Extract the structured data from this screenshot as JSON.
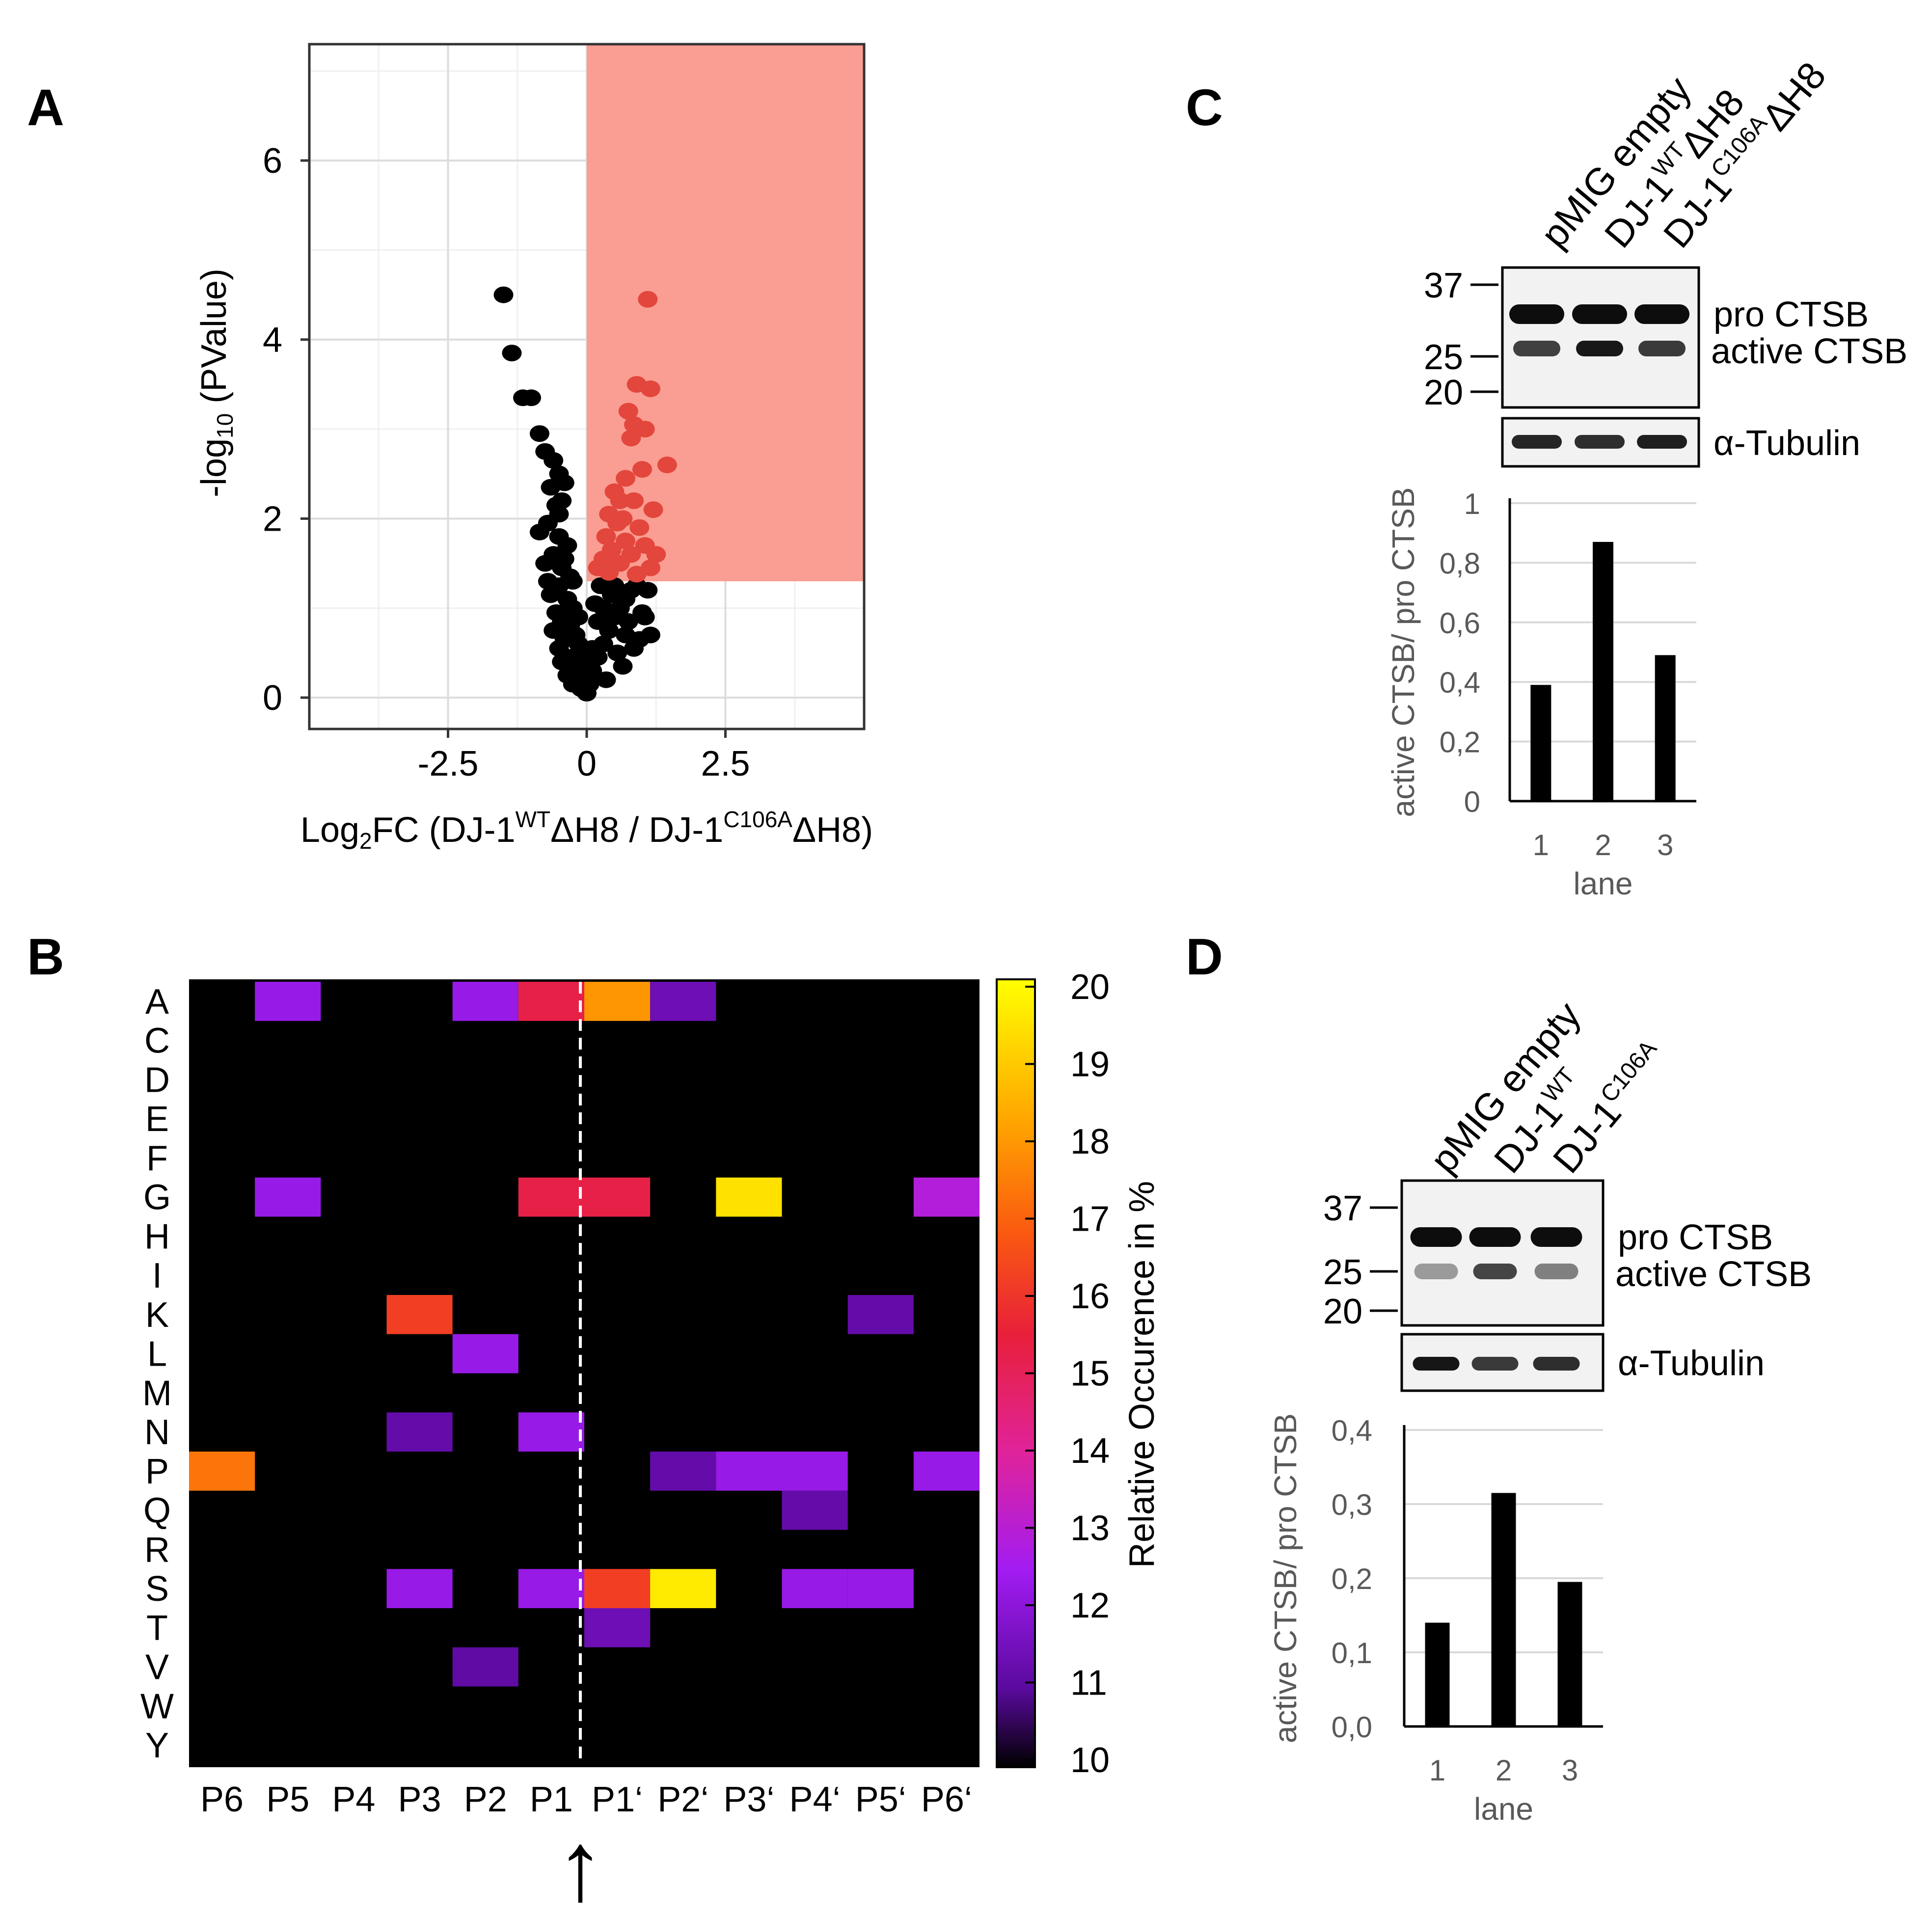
{
  "colors": {
    "significant_region": "#fa9d92",
    "significant_point": "#e3463c",
    "point": "#000000",
    "heatmap_background": "#000000",
    "bar": "#000000",
    "colormap": [
      "#000000",
      "#5a0a9e",
      "#a21cf2",
      "#e0239a",
      "#e8203a",
      "#fa5a10",
      "#ffa500",
      "#ffff00"
    ]
  },
  "panels": {
    "A": {
      "label": "A"
    },
    "B": {
      "label": "B",
      "arrow_glyph": "↑"
    },
    "C": {
      "label": "C",
      "lanes": [
        "pMIG empty",
        "DJ-1WTΔH8",
        "DJ-1C106AΔH8"
      ],
      "lane_parts": [
        {
          "main": "pMIG empty",
          "sup": "",
          "tail": ""
        },
        {
          "main": "DJ-1",
          "sup": "WT",
          "tail": "ΔH8"
        },
        {
          "main": "DJ-1",
          "sup": "C106A",
          "tail": "ΔH8"
        }
      ],
      "markers": [
        "37",
        "25",
        "20"
      ],
      "bands": {
        "pro": "pro CTSB",
        "active": "active CTSB",
        "loading": "α-Tubulin"
      }
    },
    "D": {
      "label": "D",
      "lanes": [
        "pMIG empty",
        "DJ-1WT",
        "DJ-1C106A"
      ],
      "lane_parts": [
        {
          "main": "pMIG empty",
          "sup": "",
          "tail": ""
        },
        {
          "main": "DJ-1",
          "sup": "WT",
          "tail": ""
        },
        {
          "main": "DJ-1",
          "sup": "C106A",
          "tail": ""
        }
      ],
      "markers": [
        "37",
        "25",
        "20"
      ],
      "bands": {
        "pro": "pro CTSB",
        "active": "active CTSB",
        "loading": "α-Tubulin"
      }
    }
  },
  "chart_data": [
    {
      "panel": "A",
      "type": "scatter",
      "title": "",
      "xlabel": "Log2FC (DJ-1WTΔH8 / DJ-1C106AΔH8)",
      "xlabel_parts": {
        "a": "Log",
        "b": "2",
        "c": "FC (DJ-1",
        "d": "WT",
        "e": "ΔH8 / DJ-1",
        "f": "C106A",
        "g": "ΔH8)"
      },
      "ylabel": "-log10 (PValue)",
      "ylabel_parts": {
        "a": "-log",
        "b": "10",
        "c": " (PValue)"
      },
      "xlim": [
        -5.0,
        5.0
      ],
      "ylim": [
        -0.35,
        7.3
      ],
      "xticks": [
        -2.5,
        0,
        2.5
      ],
      "xtick_labels": [
        "-2.5",
        "0",
        "2.5"
      ],
      "yticks": [
        0,
        2,
        4,
        6
      ],
      "ytick_labels": [
        "0",
        "2",
        "4",
        "6"
      ],
      "significance_region": {
        "x_min": 0,
        "y_min": 1.3
      },
      "series": [
        {
          "name": "not significant",
          "points": [
            [
              -1.5,
              4.5
            ],
            [
              -1.35,
              3.85
            ],
            [
              -1.15,
              3.35
            ],
            [
              -1.0,
              3.35
            ],
            [
              -0.85,
              2.95
            ],
            [
              -0.6,
              2.65
            ],
            [
              -0.5,
              2.5
            ],
            [
              -0.65,
              2.35
            ],
            [
              -0.45,
              2.2
            ],
            [
              -0.5,
              2.05
            ],
            [
              -0.4,
              2.4
            ],
            [
              -0.7,
              1.95
            ],
            [
              -0.85,
              1.85
            ],
            [
              -0.5,
              1.8
            ],
            [
              -0.35,
              1.7
            ],
            [
              -0.6,
              1.6
            ],
            [
              -0.75,
              1.5
            ],
            [
              -0.45,
              1.45
            ],
            [
              -0.3,
              1.35
            ],
            [
              -0.5,
              1.25
            ],
            [
              -0.65,
              1.15
            ],
            [
              -0.35,
              1.1
            ],
            [
              -0.25,
              1.0
            ],
            [
              -0.55,
              0.95
            ],
            [
              -0.45,
              0.85
            ],
            [
              -0.3,
              0.8
            ],
            [
              -0.2,
              0.7
            ],
            [
              -0.4,
              0.65
            ],
            [
              -0.5,
              0.55
            ],
            [
              -0.15,
              0.6
            ],
            [
              -0.3,
              0.45
            ],
            [
              -0.1,
              0.4
            ],
            [
              -0.2,
              0.3
            ],
            [
              -0.35,
              0.25
            ],
            [
              -0.05,
              0.2
            ],
            [
              -0.1,
              0.1
            ],
            [
              0.0,
              0.05
            ],
            [
              0.05,
              0.15
            ],
            [
              0.1,
              0.3
            ],
            [
              0.2,
              0.45
            ],
            [
              0.3,
              0.6
            ],
            [
              0.4,
              0.75
            ],
            [
              0.5,
              0.9
            ],
            [
              0.6,
              1.0
            ],
            [
              0.7,
              1.1
            ],
            [
              0.8,
              1.2
            ],
            [
              0.9,
              1.25
            ],
            [
              0.25,
              1.25
            ],
            [
              0.45,
              1.15
            ],
            [
              1.0,
              0.95
            ],
            [
              1.05,
              0.9
            ],
            [
              0.75,
              0.85
            ],
            [
              0.55,
              0.5
            ],
            [
              0.35,
              0.2
            ],
            [
              0.95,
              0.65
            ],
            [
              0.2,
              0.85
            ],
            [
              0.15,
              1.05
            ],
            [
              1.1,
              1.2
            ],
            [
              0.65,
              0.35
            ],
            [
              0.85,
              0.55
            ],
            [
              -0.75,
              2.75
            ],
            [
              -0.55,
              2.15
            ],
            [
              -0.4,
              1.55
            ],
            [
              -0.25,
              1.3
            ],
            [
              -0.15,
              0.9
            ],
            [
              -0.6,
              0.75
            ],
            [
              -0.45,
              0.4
            ],
            [
              -0.25,
              0.15
            ],
            [
              0.1,
              0.55
            ],
            [
              0.3,
              1.0
            ],
            [
              1.15,
              0.7
            ],
            [
              0.7,
              0.7
            ],
            [
              0.5,
              1.25
            ],
            [
              -0.05,
              0.5
            ],
            [
              -0.7,
              1.3
            ]
          ]
        },
        {
          "name": "significant (upregulated)",
          "points": [
            [
              1.1,
              4.45
            ],
            [
              0.9,
              3.5
            ],
            [
              1.15,
              3.45
            ],
            [
              0.75,
              3.2
            ],
            [
              0.85,
              3.05
            ],
            [
              0.8,
              2.9
            ],
            [
              1.05,
              3.0
            ],
            [
              1.45,
              2.6
            ],
            [
              1.0,
              2.55
            ],
            [
              0.7,
              2.45
            ],
            [
              0.5,
              2.3
            ],
            [
              0.6,
              2.2
            ],
            [
              0.85,
              2.2
            ],
            [
              1.2,
              2.1
            ],
            [
              0.4,
              2.05
            ],
            [
              0.55,
              1.95
            ],
            [
              0.95,
              1.9
            ],
            [
              0.35,
              1.8
            ],
            [
              0.7,
              1.75
            ],
            [
              1.05,
              1.7
            ],
            [
              0.45,
              1.65
            ],
            [
              0.8,
              1.6
            ],
            [
              0.3,
              1.55
            ],
            [
              0.6,
              1.5
            ],
            [
              1.15,
              1.45
            ],
            [
              0.4,
              1.4
            ],
            [
              0.9,
              1.38
            ],
            [
              0.2,
              1.45
            ],
            [
              1.25,
              1.6
            ],
            [
              0.65,
              2.0
            ]
          ]
        }
      ]
    },
    {
      "panel": "B",
      "type": "heatmap",
      "title": "",
      "x_categories": [
        "P6",
        "P5",
        "P4",
        "P3",
        "P2",
        "P1",
        "P1‘",
        "P2‘",
        "P3‘",
        "P4‘",
        "P5‘",
        "P6‘"
      ],
      "y_categories": [
        "A",
        "C",
        "D",
        "E",
        "F",
        "G",
        "H",
        "I",
        "K",
        "L",
        "M",
        "N",
        "P",
        "Q",
        "R",
        "S",
        "T",
        "V",
        "W",
        "Y"
      ],
      "colorbar_label": "Relative Occurence in %",
      "colorbar_range": [
        10,
        20
      ],
      "colorbar_ticks": [
        "10",
        "11",
        "12",
        "13",
        "14",
        "15",
        "16",
        "17",
        "18",
        "19",
        "20"
      ],
      "cleavage_site": "between P1 and P1‘",
      "cells": [
        {
          "x": "P5",
          "y": "A",
          "value": 12.3
        },
        {
          "x": "P2",
          "y": "A",
          "value": 12.3
        },
        {
          "x": "P1",
          "y": "A",
          "value": 15.3
        },
        {
          "x": "P1‘",
          "y": "A",
          "value": 17.9
        },
        {
          "x": "P2‘",
          "y": "A",
          "value": 11.4
        },
        {
          "x": "P5",
          "y": "G",
          "value": 12.3
        },
        {
          "x": "P1",
          "y": "G",
          "value": 15.3
        },
        {
          "x": "P1‘",
          "y": "G",
          "value": 15.3
        },
        {
          "x": "P3‘",
          "y": "G",
          "value": 19.4
        },
        {
          "x": "P6‘",
          "y": "G",
          "value": 12.9
        },
        {
          "x": "P3",
          "y": "K",
          "value": 16.2
        },
        {
          "x": "P5‘",
          "y": "K",
          "value": 11.2
        },
        {
          "x": "P2",
          "y": "L",
          "value": 12.3
        },
        {
          "x": "P3",
          "y": "N",
          "value": 11.2
        },
        {
          "x": "P1",
          "y": "N",
          "value": 12.3
        },
        {
          "x": "P6",
          "y": "P",
          "value": 17.3
        },
        {
          "x": "P2‘",
          "y": "P",
          "value": 11.2
        },
        {
          "x": "P3‘",
          "y": "P",
          "value": 12.3
        },
        {
          "x": "P4‘",
          "y": "P",
          "value": 12.3
        },
        {
          "x": "P6‘",
          "y": "P",
          "value": 12.3
        },
        {
          "x": "P4‘",
          "y": "Q",
          "value": 11.2
        },
        {
          "x": "P3",
          "y": "S",
          "value": 12.3
        },
        {
          "x": "P1",
          "y": "S",
          "value": 12.3
        },
        {
          "x": "P1‘",
          "y": "S",
          "value": 16.2
        },
        {
          "x": "P2‘",
          "y": "S",
          "value": 19.6
        },
        {
          "x": "P4‘",
          "y": "S",
          "value": 12.3
        },
        {
          "x": "P5‘",
          "y": "S",
          "value": 12.3
        },
        {
          "x": "P1‘",
          "y": "T",
          "value": 11.4
        },
        {
          "x": "P2",
          "y": "V",
          "value": 11.1
        }
      ]
    },
    {
      "panel": "C",
      "type": "bar",
      "title": "",
      "xlabel": "lane",
      "ylabel": "active CTSB/ pro CTSB",
      "categories": [
        "1",
        "2",
        "3"
      ],
      "values": [
        0.39,
        0.87,
        0.49
      ],
      "ylim": [
        0,
        1
      ],
      "yticks": [
        0,
        0.2,
        0.4,
        0.6,
        0.8,
        1
      ],
      "ytick_labels": [
        "0",
        "0,2",
        "0,4",
        "0,6",
        "0,8",
        "1"
      ]
    },
    {
      "panel": "D",
      "type": "bar",
      "title": "",
      "xlabel": "lane",
      "ylabel": "active CTSB/ pro CTSB",
      "categories": [
        "1",
        "2",
        "3"
      ],
      "values": [
        0.14,
        0.315,
        0.195
      ],
      "ylim": [
        0,
        0.4
      ],
      "yticks": [
        0,
        0.1,
        0.2,
        0.3,
        0.4
      ],
      "ytick_labels": [
        "0,0",
        "0,1",
        "0,2",
        "0,3",
        "0,4"
      ]
    }
  ]
}
